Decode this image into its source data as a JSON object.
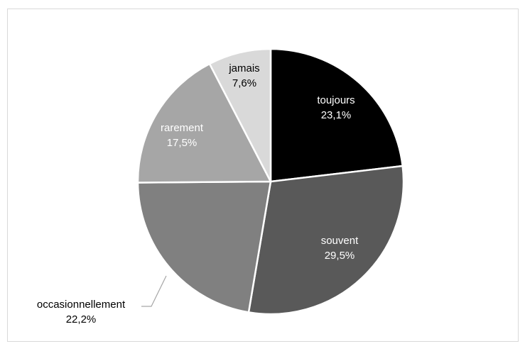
{
  "chart_data": {
    "type": "pie",
    "title": "",
    "categories": [
      "toujours",
      "souvent",
      "occasionnellement",
      "rarement",
      "jamais"
    ],
    "values": [
      23.1,
      29.5,
      22.2,
      17.5,
      7.6
    ],
    "value_labels": [
      "23,1%",
      "29,5%",
      "22,2%",
      "17,5%",
      "7,6%"
    ],
    "colors": [
      "#000000",
      "#595959",
      "#808080",
      "#a6a6a6",
      "#d9d9d9"
    ],
    "label_colors": [
      "#ffffff",
      "#ffffff",
      "#000000",
      "#ffffff",
      "#000000"
    ],
    "legend": "none",
    "data_labels": "category name and percentage"
  }
}
